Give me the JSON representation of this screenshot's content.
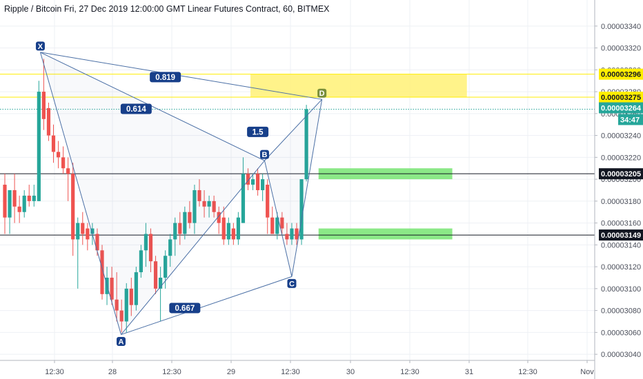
{
  "chart_data": {
    "type": "candlestick",
    "title": "Ripple / Bitcoin Fri, 27 Dec 2019 12:00:00 GMT Linear Futures Contract, 60, BITMEX",
    "ylim": [
      3.03e-05,
      3.355e-05
    ],
    "x_tick_labels": [
      "12:30",
      "28",
      "12:30",
      "29",
      "12:30",
      "30",
      "12:30",
      "31",
      "12:30",
      "Nov"
    ],
    "y_tick_labels": [
      "0.00003340",
      "0.00003320",
      "0.00003300",
      "0.00003280",
      "0.00003260",
      "0.00003240",
      "0.00003220",
      "0.00003200",
      "0.00003180",
      "0.00003160",
      "0.00003140",
      "0.00003120",
      "0.00003100",
      "0.00003080",
      "0.00003060",
      "0.00003040"
    ],
    "y_tick_values": [
      3.34e-05,
      3.32e-05,
      3.3e-05,
      3.28e-05,
      3.26e-05,
      3.24e-05,
      3.22e-05,
      3.2e-05,
      3.18e-05,
      3.16e-05,
      3.14e-05,
      3.12e-05,
      3.1e-05,
      3.08e-05,
      3.06e-05,
      3.04e-05
    ],
    "colors": {
      "up": "#26a69a",
      "down": "#ef5350",
      "pattern": "#4a6fa5",
      "label_bg": "#173f8a",
      "zone_yellow": "#fff176",
      "zone_green": "#7ee57a",
      "line_yellow": "#ffee00"
    },
    "candles": [
      {
        "o": 3.195e-05,
        "h": 3.205e-05,
        "l": 3.15e-05,
        "c": 3.165e-05
      },
      {
        "o": 3.165e-05,
        "h": 3.19e-05,
        "l": 3.15e-05,
        "c": 3.19e-05
      },
      {
        "o": 3.19e-05,
        "h": 3.205e-05,
        "l": 3.16e-05,
        "c": 3.175e-05
      },
      {
        "o": 3.175e-05,
        "h": 3.185e-05,
        "l": 3.16e-05,
        "c": 3.17e-05
      },
      {
        "o": 3.17e-05,
        "h": 3.19e-05,
        "l": 3.165e-05,
        "c": 3.185e-05
      },
      {
        "o": 3.185e-05,
        "h": 3.195e-05,
        "l": 3.175e-05,
        "c": 3.18e-05
      },
      {
        "o": 3.18e-05,
        "h": 3.195e-05,
        "l": 3.175e-05,
        "c": 3.185e-05
      },
      {
        "o": 3.18e-05,
        "h": 3.29e-05,
        "l": 3.18e-05,
        "c": 3.28e-05
      },
      {
        "o": 3.28e-05,
        "h": 3.31e-05,
        "l": 3.245e-05,
        "c": 3.255e-05
      },
      {
        "o": 3.265e-05,
        "h": 3.27e-05,
        "l": 3.235e-05,
        "c": 3.24e-05
      },
      {
        "o": 3.24e-05,
        "h": 3.25e-05,
        "l": 3.215e-05,
        "c": 3.225e-05
      },
      {
        "o": 3.225e-05,
        "h": 3.235e-05,
        "l": 3.21e-05,
        "c": 3.22e-05
      },
      {
        "o": 3.22e-05,
        "h": 3.23e-05,
        "l": 3.205e-05,
        "c": 3.21e-05
      },
      {
        "o": 3.21e-05,
        "h": 3.22e-05,
        "l": 3.18e-05,
        "c": 3.205e-05
      },
      {
        "o": 3.205e-05,
        "h": 3.215e-05,
        "l": 3.13e-05,
        "c": 3.145e-05
      },
      {
        "o": 3.145e-05,
        "h": 3.165e-05,
        "l": 3.1e-05,
        "c": 3.16e-05
      },
      {
        "o": 3.16e-05,
        "h": 3.17e-05,
        "l": 3.14e-05,
        "c": 3.15e-05
      },
      {
        "o": 3.155e-05,
        "h": 3.16e-05,
        "l": 3.135e-05,
        "c": 3.145e-05
      },
      {
        "o": 3.15e-05,
        "h": 3.16e-05,
        "l": 3.14e-05,
        "c": 3.155e-05
      },
      {
        "o": 3.15e-05,
        "h": 3.155e-05,
        "l": 3.13e-05,
        "c": 3.135e-05
      },
      {
        "o": 3.135e-05,
        "h": 3.14e-05,
        "l": 3.09e-05,
        "c": 3.095e-05
      },
      {
        "o": 3.095e-05,
        "h": 3.12e-05,
        "l": 3.085e-05,
        "c": 3.11e-05
      },
      {
        "o": 3.11e-05,
        "h": 3.12e-05,
        "l": 3.085e-05,
        "c": 3.09e-05
      },
      {
        "o": 3.09e-05,
        "h": 3.115e-05,
        "l": 3.07e-05,
        "c": 3.08e-05
      },
      {
        "o": 3.08e-05,
        "h": 3.09e-05,
        "l": 3.06e-05,
        "c": 3.07e-05
      },
      {
        "o": 3.07e-05,
        "h": 3.105e-05,
        "l": 3.06e-05,
        "c": 3.1e-05
      },
      {
        "o": 3.1e-05,
        "h": 3.11e-05,
        "l": 3.075e-05,
        "c": 3.085e-05
      },
      {
        "o": 3.085e-05,
        "h": 3.12e-05,
        "l": 3.08e-05,
        "c": 3.115e-05
      },
      {
        "o": 3.115e-05,
        "h": 3.14e-05,
        "l": 3.11e-05,
        "c": 3.135e-05
      },
      {
        "o": 3.135e-05,
        "h": 3.16e-05,
        "l": 3.12e-05,
        "c": 3.15e-05
      },
      {
        "o": 3.15e-05,
        "h": 3.155e-05,
        "l": 3.115e-05,
        "c": 3.125e-05
      },
      {
        "o": 3.125e-05,
        "h": 3.13e-05,
        "l": 3.095e-05,
        "c": 3.1e-05
      },
      {
        "o": 3.1e-05,
        "h": 3.12e-05,
        "l": 3.07e-05,
        "c": 3.11e-05
      },
      {
        "o": 3.11e-05,
        "h": 3.135e-05,
        "l": 3.1e-05,
        "c": 3.13e-05
      },
      {
        "o": 3.13e-05,
        "h": 3.15e-05,
        "l": 3.12e-05,
        "c": 3.145e-05
      },
      {
        "o": 3.145e-05,
        "h": 3.165e-05,
        "l": 3.13e-05,
        "c": 3.16e-05
      },
      {
        "o": 3.16e-05,
        "h": 3.17e-05,
        "l": 3.14e-05,
        "c": 3.15e-05
      },
      {
        "o": 3.15e-05,
        "h": 3.175e-05,
        "l": 3.145e-05,
        "c": 3.17e-05
      },
      {
        "o": 3.17e-05,
        "h": 3.18e-05,
        "l": 3.155e-05,
        "c": 3.16e-05
      },
      {
        "o": 3.16e-05,
        "h": 3.195e-05,
        "l": 3.15e-05,
        "c": 3.19e-05
      },
      {
        "o": 3.19e-05,
        "h": 3.2e-05,
        "l": 3.175e-05,
        "c": 3.18e-05
      },
      {
        "o": 3.18e-05,
        "h": 3.19e-05,
        "l": 3.165e-05,
        "c": 3.175e-05
      },
      {
        "o": 3.175e-05,
        "h": 3.185e-05,
        "l": 3.165e-05,
        "c": 3.18e-05
      },
      {
        "o": 3.18e-05,
        "h": 3.185e-05,
        "l": 3.165e-05,
        "c": 3.17e-05
      },
      {
        "o": 3.17e-05,
        "h": 3.175e-05,
        "l": 3.15e-05,
        "c": 3.16e-05
      },
      {
        "o": 3.165e-05,
        "h": 3.175e-05,
        "l": 3.14e-05,
        "c": 3.145e-05
      },
      {
        "o": 3.145e-05,
        "h": 3.165e-05,
        "l": 3.14e-05,
        "c": 3.16e-05
      },
      {
        "o": 3.155e-05,
        "h": 3.16e-05,
        "l": 3.14e-05,
        "c": 3.145e-05
      },
      {
        "o": 3.145e-05,
        "h": 3.17e-05,
        "l": 3.14e-05,
        "c": 3.165e-05
      },
      {
        "o": 3.16e-05,
        "h": 3.22e-05,
        "l": 3.16e-05,
        "c": 3.205e-05
      },
      {
        "o": 3.205e-05,
        "h": 3.21e-05,
        "l": 3.19e-05,
        "c": 3.195e-05
      },
      {
        "o": 3.195e-05,
        "h": 3.205e-05,
        "l": 3.19e-05,
        "c": 3.2e-05
      },
      {
        "o": 3.205e-05,
        "h": 3.21e-05,
        "l": 3.185e-05,
        "c": 3.19e-05
      },
      {
        "o": 3.19e-05,
        "h": 3.205e-05,
        "l": 3.18e-05,
        "c": 3.2e-05
      },
      {
        "o": 3.195e-05,
        "h": 3.2e-05,
        "l": 3.15e-05,
        "c": 3.165e-05
      },
      {
        "o": 3.165e-05,
        "h": 3.175e-05,
        "l": 3.15e-05,
        "c": 3.15e-05
      },
      {
        "o": 3.15e-05,
        "h": 3.17e-05,
        "l": 3.145e-05,
        "c": 3.165e-05
      },
      {
        "o": 3.165e-05,
        "h": 3.17e-05,
        "l": 3.15e-05,
        "c": 3.155e-05
      },
      {
        "o": 3.15e-05,
        "h": 3.16e-05,
        "l": 3.14e-05,
        "c": 3.145e-05
      },
      {
        "o": 3.145e-05,
        "h": 3.16e-05,
        "l": 3.14e-05,
        "c": 3.155e-05
      },
      {
        "o": 3.155e-05,
        "h": 3.16e-05,
        "l": 3.14e-05,
        "c": 3.145e-05
      },
      {
        "o": 3.145e-05,
        "h": 3.2e-05,
        "l": 3.14e-05,
        "c": 3.2e-05
      },
      {
        "o": 3.2e-05,
        "h": 3.268e-05,
        "l": 3.198e-05,
        "c": 3.264e-05
      }
    ],
    "harmonic_pattern": {
      "points": [
        {
          "label": "X",
          "candle": 7.3,
          "price": 3.316e-05
        },
        {
          "label": "A",
          "candle": 23.9,
          "price": 3.058e-05
        },
        {
          "label": "B",
          "candle": 53.4,
          "price": 3.217e-05
        },
        {
          "label": "C",
          "candle": 59.0,
          "price": 3.111e-05
        },
        {
          "label": "D",
          "candle": 65.2,
          "price": 3.273e-05
        }
      ],
      "ratios": [
        {
          "text": "0.819",
          "candle": 33.0,
          "price": 3.293e-05
        },
        {
          "text": "0.614",
          "candle": 27.0,
          "price": 3.264e-05
        },
        {
          "text": "1.5",
          "candle": 52.0,
          "price": 3.243e-05
        },
        {
          "text": "0.667",
          "candle": 37.0,
          "price": 3.082e-05
        }
      ]
    },
    "zones": [
      {
        "color": "yellow",
        "candle_start": 50.5,
        "candle_end": 95.0,
        "price_top": 3.296e-05,
        "price_bottom": 3.275e-05
      },
      {
        "color": "green",
        "candle_start": 64.5,
        "candle_end": 92.0,
        "price_top": 3.21e-05,
        "price_bottom": 3.2e-05
      },
      {
        "color": "green",
        "candle_start": 64.5,
        "candle_end": 92.0,
        "price_top": 3.155e-05,
        "price_bottom": 3.145e-05
      }
    ],
    "horizontal_lines": [
      {
        "price": 3.296e-05,
        "color": "#ffee00",
        "style": "solid"
      },
      {
        "price": 3.275e-05,
        "color": "#ffee00",
        "style": "solid"
      },
      {
        "price": 3.264e-05,
        "color": "#26a69a",
        "style": "dotted"
      },
      {
        "price": 3.205e-05,
        "color": "#131722",
        "style": "solid"
      },
      {
        "price": 3.149e-05,
        "color": "#131722",
        "style": "solid"
      }
    ],
    "price_tags": [
      {
        "text": "0.00003296",
        "bg": "#ffee00",
        "fg": "#131722",
        "price": 3.296e-05
      },
      {
        "text": "0.00003275",
        "bg": "#ffee00",
        "fg": "#131722",
        "price": 3.275e-05
      },
      {
        "text": "0.00003264",
        "bg": "#26a69a",
        "fg": "#ffffff",
        "price": 3.264e-05
      },
      {
        "text": "34:47",
        "bg": "#26a69a",
        "fg": "#ffffff",
        "price": 3.255e-05
      },
      {
        "text": "0.00003205",
        "bg": "#131722",
        "fg": "#ffffff",
        "price": 3.205e-05
      },
      {
        "text": "0.00003149",
        "bg": "#131722",
        "fg": "#ffffff",
        "price": 3.149e-05
      }
    ]
  }
}
